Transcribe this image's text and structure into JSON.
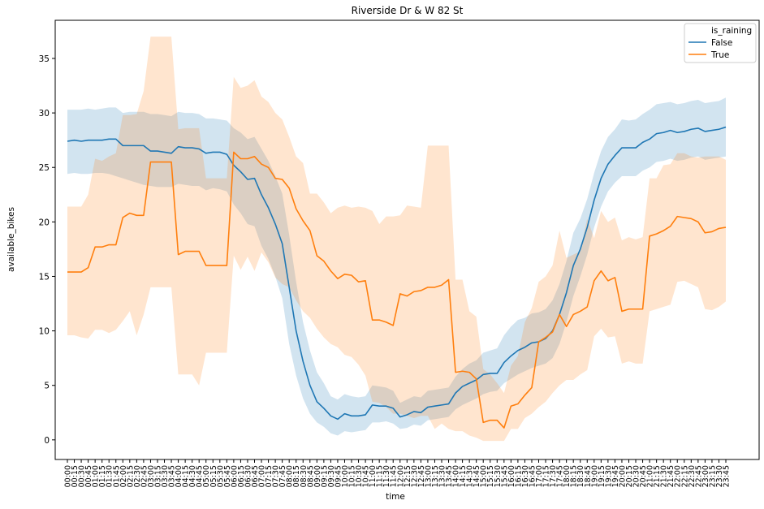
{
  "chart_data": {
    "type": "line",
    "title": "Riverside Dr & W 82 St",
    "xlabel": "time",
    "ylabel": "available_bikes",
    "ylim": [
      -1.8,
      38.5
    ],
    "yticks": [
      0,
      5,
      10,
      15,
      20,
      25,
      30,
      35
    ],
    "grid": false,
    "legend": {
      "title": "is_raining",
      "placement": "top-right"
    },
    "x": [
      "00:00",
      "00:15",
      "00:30",
      "00:45",
      "01:00",
      "01:15",
      "01:30",
      "01:45",
      "02:00",
      "02:15",
      "02:30",
      "02:45",
      "03:00",
      "03:15",
      "03:30",
      "03:45",
      "04:00",
      "04:15",
      "04:30",
      "04:45",
      "05:00",
      "05:15",
      "05:30",
      "05:45",
      "06:00",
      "06:15",
      "06:30",
      "06:45",
      "07:00",
      "07:15",
      "07:30",
      "07:45",
      "08:00",
      "08:15",
      "08:30",
      "08:45",
      "09:00",
      "09:15",
      "09:30",
      "09:45",
      "10:00",
      "10:15",
      "10:30",
      "10:45",
      "11:00",
      "11:15",
      "11:30",
      "11:45",
      "12:00",
      "12:15",
      "12:30",
      "12:45",
      "13:00",
      "13:15",
      "13:30",
      "13:45",
      "14:00",
      "14:15",
      "14:30",
      "14:45",
      "15:00",
      "15:15",
      "15:30",
      "15:45",
      "16:00",
      "16:15",
      "16:30",
      "16:45",
      "17:00",
      "17:15",
      "17:30",
      "17:45",
      "18:00",
      "18:15",
      "18:30",
      "18:45",
      "19:00",
      "19:15",
      "19:30",
      "19:45",
      "20:00",
      "20:15",
      "20:30",
      "20:45",
      "21:00",
      "21:15",
      "21:30",
      "21:45",
      "22:00",
      "22:15",
      "22:30",
      "22:45",
      "23:00",
      "23:15",
      "23:30",
      "23:45"
    ],
    "series": [
      {
        "name": "False",
        "color": "#1f77b4",
        "values": [
          27.4,
          27.5,
          27.4,
          27.5,
          27.5,
          27.5,
          27.6,
          27.6,
          27.0,
          27.0,
          27.0,
          27.0,
          26.5,
          26.5,
          26.4,
          26.3,
          26.9,
          26.8,
          26.8,
          26.7,
          26.3,
          26.4,
          26.4,
          26.2,
          25.2,
          24.6,
          23.9,
          24.0,
          22.5,
          21.3,
          19.8,
          18.0,
          14.0,
          10.0,
          7.2,
          5.0,
          3.5,
          2.9,
          2.2,
          1.9,
          2.4,
          2.2,
          2.2,
          2.3,
          3.2,
          3.1,
          3.1,
          2.9,
          2.1,
          2.3,
          2.6,
          2.5,
          3.0,
          3.1,
          3.2,
          3.3,
          4.3,
          4.9,
          5.2,
          5.5,
          6.0,
          6.1,
          6.1,
          7.1,
          7.7,
          8.2,
          8.5,
          8.9,
          9.0,
          9.3,
          10.0,
          11.5,
          13.5,
          16.0,
          17.5,
          19.5,
          22.0,
          24.0,
          25.3,
          26.1,
          26.8,
          26.8,
          26.8,
          27.3,
          27.6,
          28.1,
          28.2,
          28.4,
          28.2,
          28.3,
          28.5,
          28.6,
          28.3,
          28.4,
          28.5,
          28.7
        ],
        "ci_lower": [
          24.4,
          24.5,
          24.4,
          24.4,
          24.5,
          24.5,
          24.4,
          24.2,
          24.0,
          23.8,
          23.6,
          23.4,
          23.3,
          23.2,
          23.2,
          23.2,
          23.5,
          23.4,
          23.3,
          23.3,
          22.9,
          23.1,
          23.0,
          22.8,
          21.6,
          20.8,
          19.8,
          19.6,
          17.8,
          16.6,
          15.0,
          13.0,
          8.8,
          5.9,
          3.8,
          2.4,
          1.6,
          1.2,
          0.6,
          0.4,
          0.8,
          0.7,
          0.8,
          0.9,
          1.6,
          1.6,
          1.7,
          1.5,
          1.0,
          1.1,
          1.4,
          1.3,
          1.8,
          1.9,
          2.0,
          2.1,
          2.8,
          3.2,
          3.5,
          3.8,
          4.2,
          4.4,
          4.5,
          5.2,
          5.6,
          6.0,
          6.3,
          6.6,
          6.8,
          7.0,
          7.5,
          8.8,
          10.8,
          13.2,
          15.0,
          17.0,
          19.5,
          21.4,
          22.8,
          23.6,
          24.2,
          24.2,
          24.2,
          24.7,
          25.0,
          25.5,
          25.6,
          25.8,
          25.6,
          25.7,
          25.9,
          26.0,
          25.7,
          25.8,
          25.9,
          26.0
        ],
        "ci_upper": [
          30.3,
          30.3,
          30.3,
          30.4,
          30.3,
          30.4,
          30.5,
          30.5,
          30.0,
          30.1,
          30.1,
          30.1,
          29.9,
          29.9,
          29.8,
          29.7,
          30.1,
          30.0,
          30.0,
          29.9,
          29.5,
          29.5,
          29.4,
          29.3,
          28.6,
          28.2,
          27.6,
          27.8,
          26.7,
          25.6,
          24.2,
          22.6,
          18.8,
          14.5,
          10.8,
          8.2,
          6.2,
          5.2,
          4.0,
          3.7,
          4.2,
          4.0,
          3.9,
          4.0,
          5.0,
          4.9,
          4.8,
          4.5,
          3.4,
          3.7,
          4.0,
          3.9,
          4.5,
          4.6,
          4.7,
          4.8,
          5.8,
          6.5,
          7.0,
          7.3,
          8.0,
          8.2,
          8.4,
          9.6,
          10.4,
          11.0,
          11.2,
          11.6,
          11.7,
          12.0,
          12.8,
          14.3,
          16.4,
          19.0,
          20.3,
          22.1,
          24.5,
          26.5,
          27.8,
          28.5,
          29.4,
          29.3,
          29.4,
          29.9,
          30.3,
          30.8,
          30.9,
          31.0,
          30.8,
          30.9,
          31.1,
          31.2,
          30.9,
          31.0,
          31.1,
          31.4
        ]
      },
      {
        "name": "True",
        "color": "#ff7f0e",
        "values": [
          15.4,
          15.4,
          15.4,
          15.8,
          17.7,
          17.7,
          17.9,
          17.9,
          20.4,
          20.8,
          20.6,
          20.6,
          25.5,
          25.5,
          25.5,
          25.5,
          17.0,
          17.3,
          17.3,
          17.3,
          16.0,
          16.0,
          16.0,
          16.0,
          26.4,
          25.8,
          25.8,
          26.0,
          25.3,
          25.0,
          24.0,
          23.9,
          23.1,
          21.2,
          20.1,
          19.2,
          16.9,
          16.4,
          15.5,
          14.8,
          15.2,
          15.1,
          14.5,
          14.6,
          11.0,
          11.0,
          10.8,
          10.5,
          13.4,
          13.2,
          13.6,
          13.7,
          14.0,
          14.0,
          14.2,
          14.7,
          6.2,
          6.3,
          6.2,
          5.6,
          1.6,
          1.8,
          1.8,
          1.1,
          3.1,
          3.3,
          4.1,
          4.8,
          9.0,
          9.4,
          9.9,
          11.5,
          10.4,
          11.5,
          11.8,
          12.2,
          14.6,
          15.5,
          14.6,
          14.9,
          11.8,
          12.0,
          12.0,
          12.0,
          18.7,
          18.9,
          19.2,
          19.6,
          20.5,
          20.4,
          20.3,
          20.0,
          19.0,
          19.1,
          19.4,
          19.5
        ],
        "ci_lower": [
          9.6,
          9.6,
          9.4,
          9.3,
          10.1,
          10.1,
          9.8,
          10.1,
          10.9,
          11.8,
          9.6,
          11.5,
          14.0,
          14.0,
          14.0,
          14.0,
          6.0,
          6.0,
          6.0,
          5.0,
          8.0,
          8.0,
          8.0,
          8.0,
          16.9,
          15.6,
          16.8,
          15.5,
          17.2,
          16.3,
          14.9,
          14.3,
          14.0,
          12.8,
          11.8,
          11.2,
          10.2,
          9.4,
          8.8,
          8.5,
          7.8,
          7.6,
          6.9,
          5.9,
          3.5,
          3.4,
          3.0,
          2.4,
          2.4,
          2.2,
          2.0,
          2.2,
          2.2,
          1.0,
          1.5,
          1.0,
          0.8,
          0.8,
          0.4,
          0.2,
          -0.1,
          -0.1,
          -0.1,
          -0.1,
          1.0,
          1.0,
          2.0,
          2.4,
          3.0,
          3.5,
          4.3,
          5.0,
          5.5,
          5.5,
          6.0,
          6.4,
          9.5,
          10.2,
          9.4,
          9.5,
          7.0,
          7.2,
          7.0,
          7.0,
          11.8,
          12.0,
          12.2,
          12.4,
          14.5,
          14.6,
          14.3,
          14.0,
          12.0,
          11.9,
          12.2,
          12.7
        ],
        "ci_upper": [
          21.4,
          21.4,
          21.4,
          22.5,
          25.8,
          25.6,
          26.0,
          26.3,
          29.8,
          29.8,
          29.9,
          32.0,
          37.0,
          37.0,
          37.0,
          37.0,
          28.5,
          28.6,
          28.6,
          28.6,
          24.0,
          24.0,
          24.0,
          24.0,
          33.3,
          32.3,
          32.5,
          33.0,
          31.5,
          31.0,
          30.0,
          29.4,
          27.8,
          26.0,
          25.4,
          22.6,
          22.6,
          21.8,
          20.8,
          21.3,
          21.5,
          21.3,
          21.4,
          21.3,
          21.0,
          19.8,
          20.5,
          20.5,
          20.6,
          21.5,
          21.4,
          21.3,
          27.0,
          27.0,
          27.0,
          27.0,
          14.7,
          14.7,
          11.8,
          11.3,
          6.5,
          6.0,
          5.2,
          4.3,
          6.8,
          7.7,
          10.8,
          12.1,
          14.5,
          15.0,
          16.0,
          19.2,
          16.7,
          17.0,
          17.3,
          20.3,
          18.5,
          21.0,
          20.0,
          20.4,
          18.3,
          18.6,
          18.4,
          18.6,
          24.0,
          24.0,
          25.2,
          25.3,
          26.3,
          26.3,
          26.0,
          25.9,
          26.0,
          26.0,
          26.0,
          25.7
        ]
      }
    ]
  }
}
